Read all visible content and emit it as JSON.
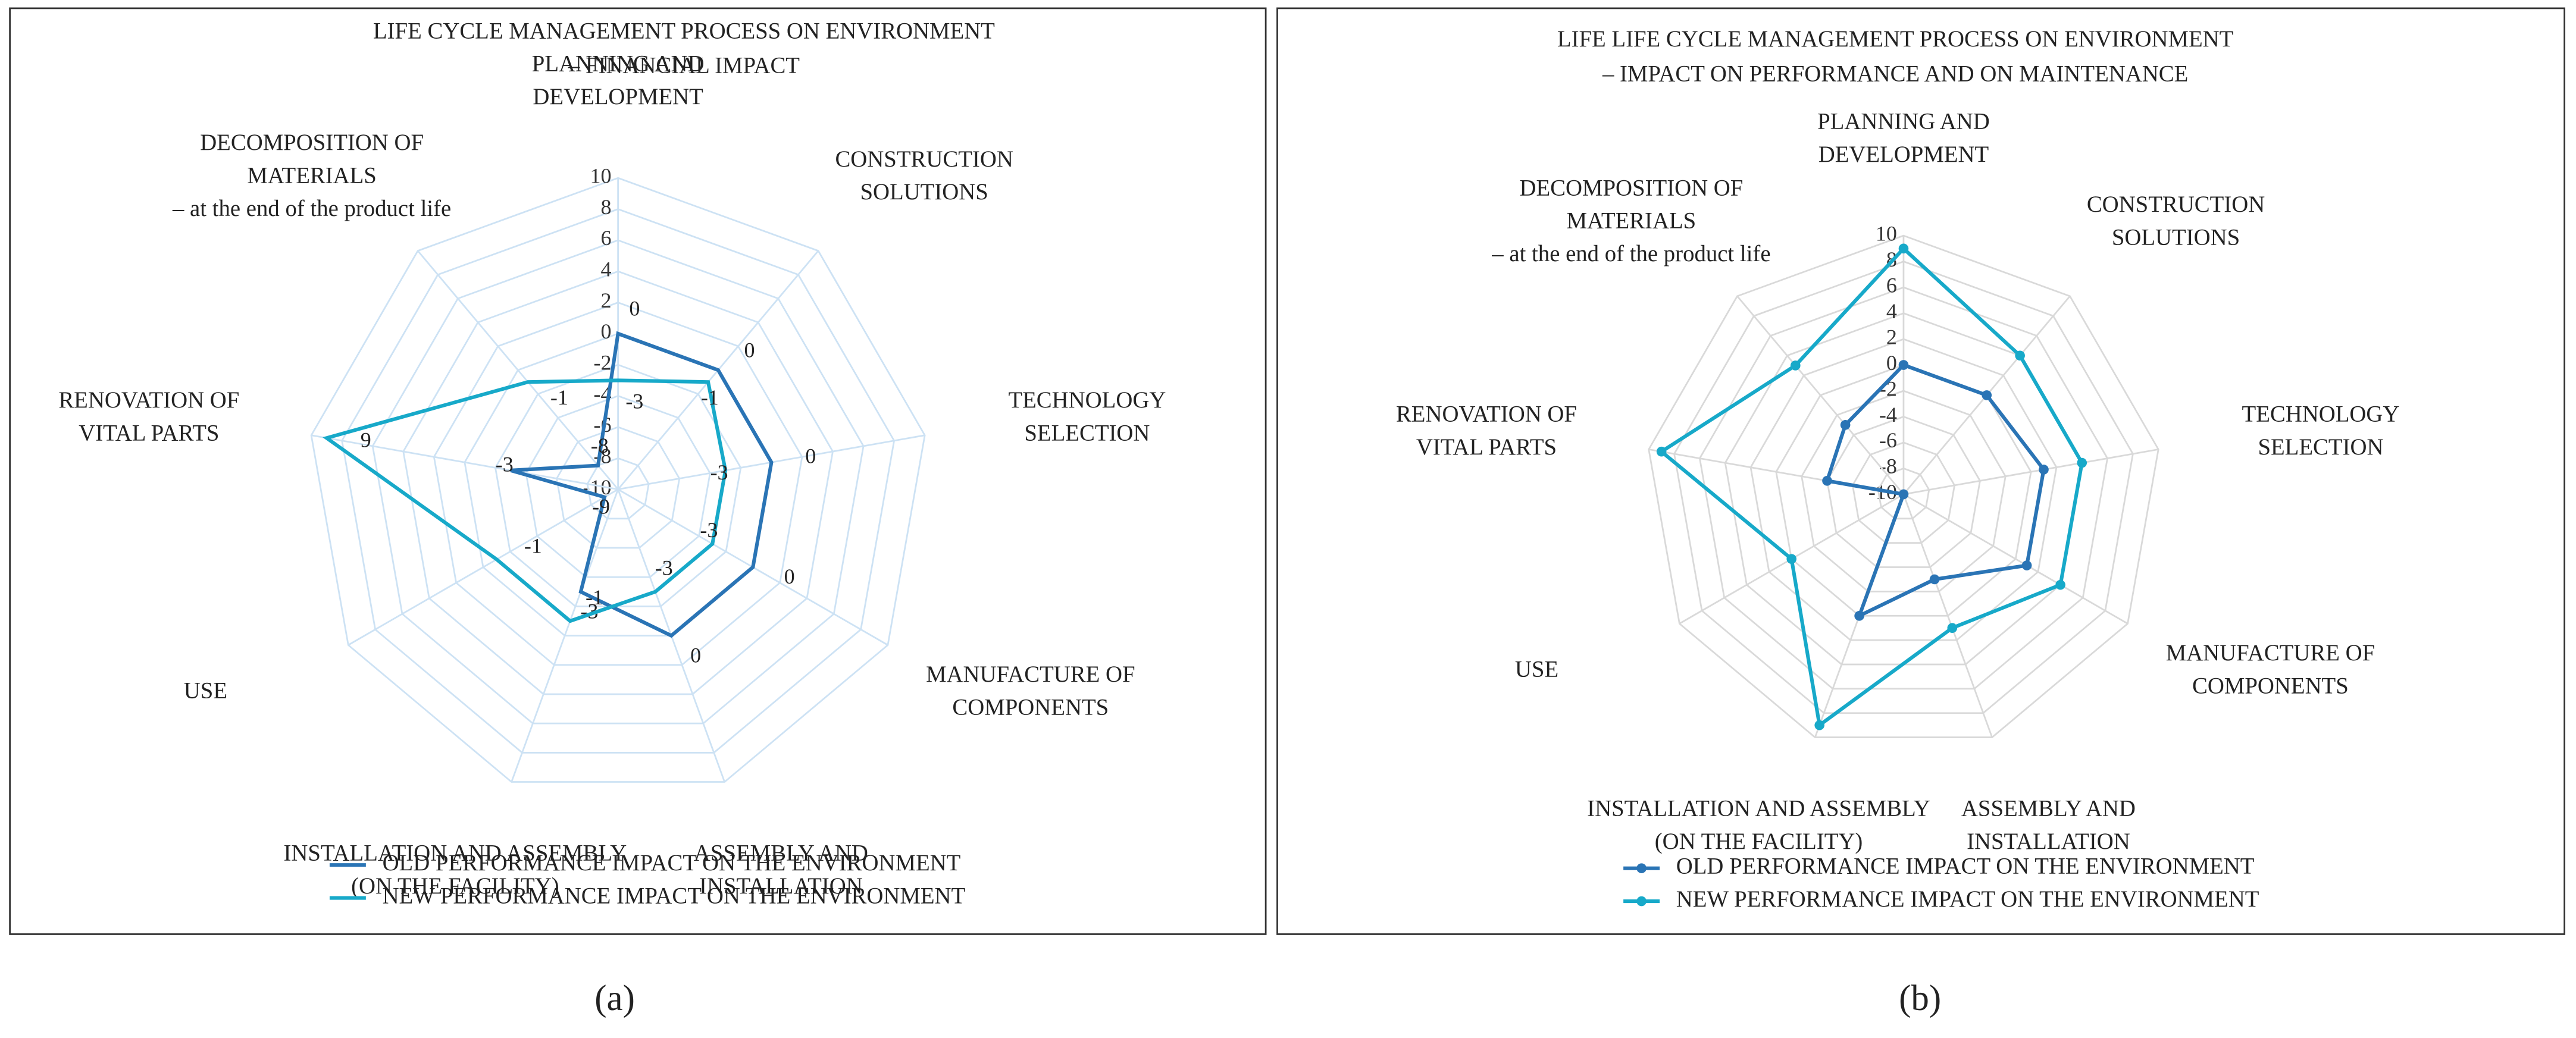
{
  "chart_data": [
    {
      "type": "radar",
      "title": [
        "LIFE CYCLE MANAGEMENT PROCESS ON ENVIRONMENT",
        "– FINANCIAL IMPACT"
      ],
      "panel_label": "(a)",
      "categories": [
        [
          "PLANNING AND",
          "DEVELOPMENT"
        ],
        [
          "CONSTRUCTION",
          "SOLUTIONS"
        ],
        [
          "TECHNOLOGY",
          "SELECTION"
        ],
        [
          "MANUFACTURE OF",
          "COMPONENTS"
        ],
        [
          "ASSEMBLY AND",
          "INSTALLATION"
        ],
        [
          "INSTALLATION AND ASSEMBLY",
          "(ON THE FACILITY)"
        ],
        [
          "USE"
        ],
        [
          "RENOVATION OF",
          "VITAL PARTS"
        ],
        [
          "DECOMPOSITION OF",
          "MATERIALS",
          "– at the end of the product life"
        ]
      ],
      "series": [
        {
          "name": "OLD PERFORMANCE IMPACT ON THE ENVIRONMENT",
          "color": "#2a74b5",
          "values": [
            0,
            0,
            0,
            0,
            0,
            -3,
            -9,
            -3,
            -8
          ]
        },
        {
          "name": "NEW PERFORMANCE IMPACT ON THE ENVIRONMENT",
          "color": "#17a9c9",
          "values": [
            -3,
            -1,
            -3,
            -3,
            -3,
            -1,
            -1,
            9,
            -1
          ]
        }
      ],
      "ylim": [
        -10,
        10
      ],
      "yticks": [
        -10,
        -8,
        -6,
        -4,
        -2,
        0,
        2,
        4,
        6,
        8,
        10
      ],
      "grid": true,
      "grid_color": "#cde2f4",
      "markers": false,
      "show_values": true
    },
    {
      "type": "radar",
      "title": [
        "LIFE LIFE CYCLE MANAGEMENT PROCESS ON ENVIRONMENT",
        "– IMPACT ON PERFORMANCE AND ON MAINTENANCE"
      ],
      "panel_label": "(b)",
      "categories": [
        [
          "PLANNING AND",
          "DEVELOPMENT"
        ],
        [
          "CONSTRUCTION",
          "SOLUTIONS"
        ],
        [
          "TECHNOLOGY",
          "SELECTION"
        ],
        [
          "MANUFACTURE OF",
          "COMPONENTS"
        ],
        [
          "ASSEMBLY AND",
          "INSTALLATION"
        ],
        [
          "INSTALLATION AND ASSEMBLY",
          "(ON THE FACILITY)"
        ],
        [
          "USE"
        ],
        [
          "RENOVATION OF",
          "VITAL PARTS"
        ],
        [
          "DECOMPOSITION OF",
          "MATERIALS",
          "– at the end of the product life"
        ]
      ],
      "series": [
        {
          "name": "OLD PERFORMANCE IMPACT ON THE ENVIRONMENT",
          "color": "#2a74b5",
          "values": [
            0,
            0,
            1,
            1,
            -3,
            0,
            -10,
            -4,
            -3
          ]
        },
        {
          "name": "NEW PERFORMANCE IMPACT ON THE ENVIRONMENT",
          "color": "#17a9c9",
          "values": [
            9,
            4,
            4,
            4,
            1,
            9,
            0,
            9,
            3
          ]
        }
      ],
      "ylim": [
        -10,
        10
      ],
      "yticks": [
        -10,
        -8,
        -6,
        -4,
        -2,
        0,
        2,
        4,
        6,
        8,
        10
      ],
      "grid": true,
      "grid_color": "#d9d9d9",
      "markers": true,
      "show_values": false
    }
  ]
}
